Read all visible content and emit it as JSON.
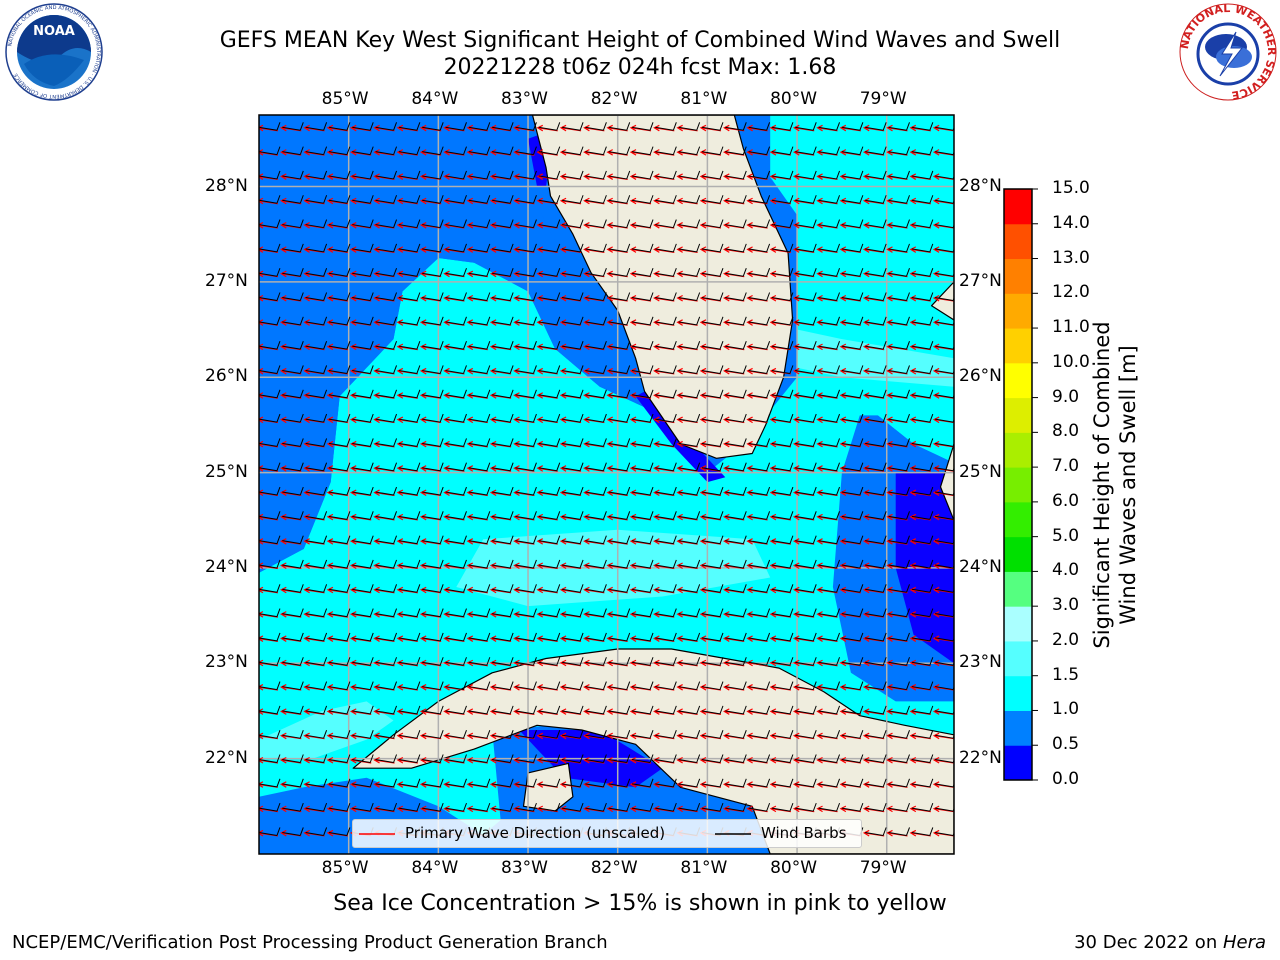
{
  "title_line1": "GEFS MEAN Key West Significant Height of Combined Wind Waves and Swell",
  "title_line2": "20221228 t06z 024h fcst   Max: 1.68",
  "subtitle": "Sea Ice Concentration > 15% is shown in pink to yellow",
  "footer_left": "NCEP/EMC/Verification Post Processing Product Generation Branch",
  "footer_right_date": "30 Dec 2022 on ",
  "footer_right_host": "Hera",
  "logos": {
    "noaa": {
      "text": "NOAA",
      "ring_text": "NATIONAL OCEANIC AND ATMOSPHERIC ADMINISTRATION · U.S. DEPARTMENT OF COMMERCE"
    },
    "nws": {
      "ring_text": "NATIONAL WEATHER SERVICE"
    }
  },
  "map": {
    "lon_range": [
      -86.0,
      -78.25
    ],
    "lat_range": [
      21.0,
      28.75
    ],
    "lon_ticks": [
      {
        "value": -85,
        "label": "85°W"
      },
      {
        "value": -84,
        "label": "84°W"
      },
      {
        "value": -83,
        "label": "83°W"
      },
      {
        "value": -82,
        "label": "82°W"
      },
      {
        "value": -81,
        "label": "81°W"
      },
      {
        "value": -80,
        "label": "80°W"
      },
      {
        "value": -79,
        "label": "79°W"
      }
    ],
    "lat_ticks": [
      {
        "value": 22,
        "label": "22°N"
      },
      {
        "value": 23,
        "label": "23°N"
      },
      {
        "value": 24,
        "label": "24°N"
      },
      {
        "value": 25,
        "label": "25°N"
      },
      {
        "value": 26,
        "label": "26°N"
      },
      {
        "value": 27,
        "label": "27°N"
      },
      {
        "value": 28,
        "label": "28°N"
      }
    ],
    "colors": {
      "land": "#efedde",
      "sea_0_05": "#0a00ff",
      "sea_05_10": "#0077ff",
      "sea_10_15": "#00ffff",
      "sea_15_20": "#55ffff",
      "grid": "#b0b0b0",
      "arrow": "#ff0000",
      "barb": "#000000"
    }
  },
  "legend": {
    "wave_label": "Primary Wave Direction (unscaled)",
    "barb_label": "Wind Barbs"
  },
  "colorbar": {
    "title_line1": "Significant Height of Combined",
    "title_line2": "Wind Waves and Swell [m]",
    "levels": [
      "0.0",
      "0.5",
      "1.0",
      "1.5",
      "2.0",
      "3.0",
      "4.0",
      "5.0",
      "6.0",
      "7.0",
      "8.0",
      "9.0",
      "10.0",
      "11.0",
      "12.0",
      "13.0",
      "14.0",
      "15.0"
    ],
    "colors": [
      "#0000ff",
      "#0080ff",
      "#00ffff",
      "#55ffff",
      "#aaffff",
      "#55ff80",
      "#00e000",
      "#33ee00",
      "#77ee00",
      "#aaee00",
      "#ddee00",
      "#ffff00",
      "#ffd000",
      "#ffaa00",
      "#ff8000",
      "#ff5000",
      "#ff0000"
    ]
  }
}
